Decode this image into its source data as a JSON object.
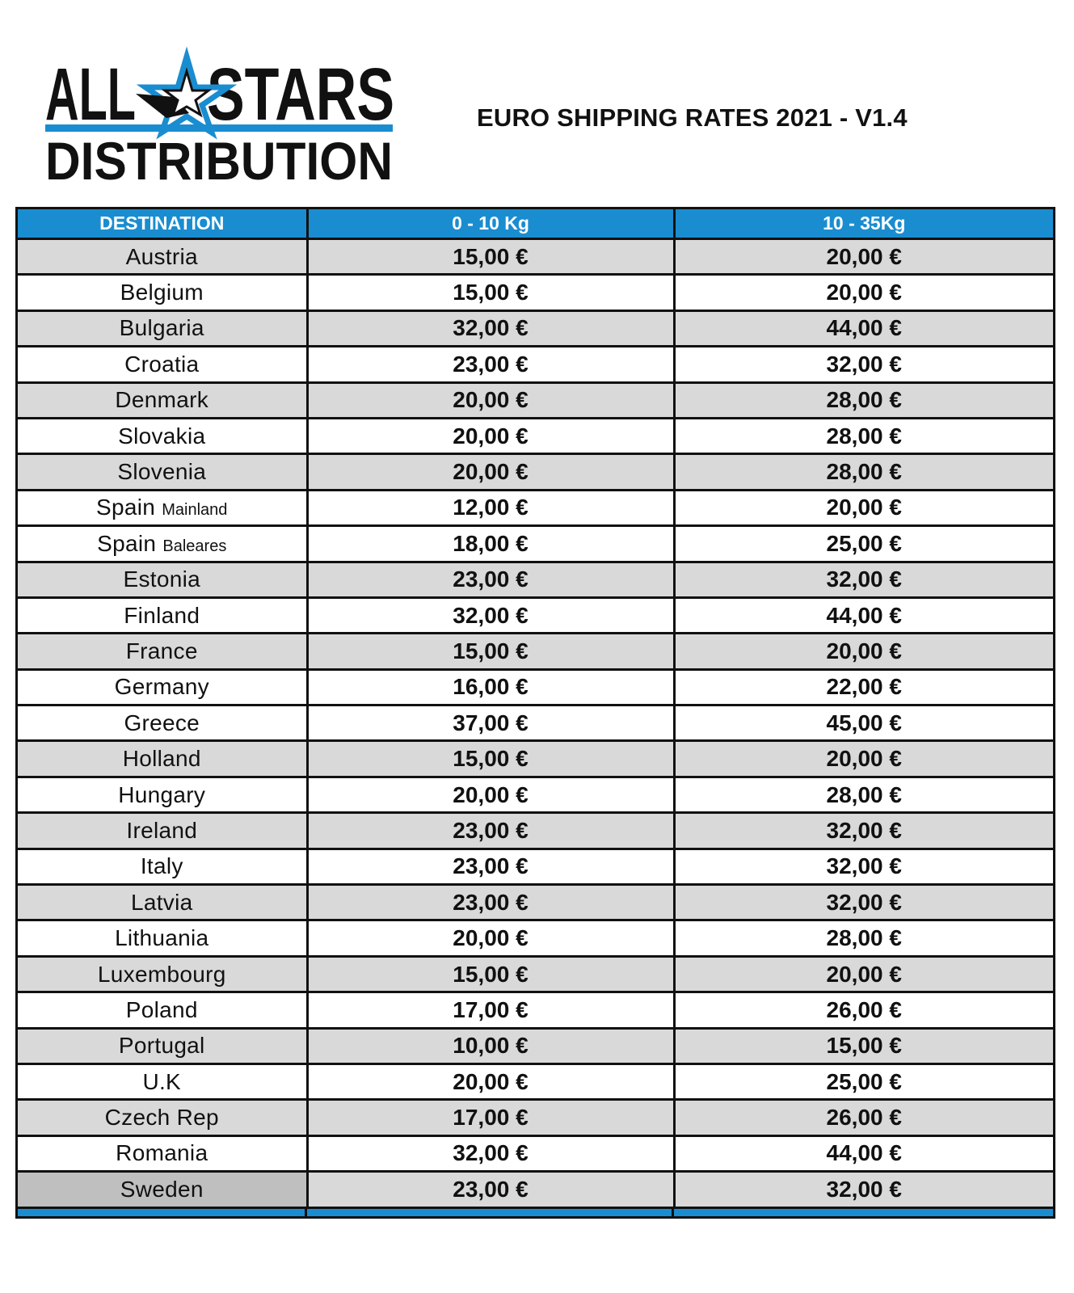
{
  "logo": {
    "line1_left": "ALL",
    "line1_right": "STARS",
    "line2": "DISTRIBUTION",
    "star_icon": "star-icon",
    "accent_color": "#1a8dd0"
  },
  "title": "EURO SHIPPING RATES 2021 - V1.4",
  "table": {
    "header_color": "#1a8dd0",
    "shade_color": "#d9d9d9",
    "headers": [
      "DESTINATION",
      "0 - 10 Kg",
      "10 - 35Kg"
    ],
    "rows": [
      {
        "destination": "Austria",
        "sub": "",
        "rate_0_10": "15,00 €",
        "rate_10_35": "20,00 €"
      },
      {
        "destination": "Belgium",
        "sub": "",
        "rate_0_10": "15,00 €",
        "rate_10_35": "20,00 €"
      },
      {
        "destination": "Bulgaria",
        "sub": "",
        "rate_0_10": "32,00 €",
        "rate_10_35": "44,00 €"
      },
      {
        "destination": "Croatia",
        "sub": "",
        "rate_0_10": "23,00 €",
        "rate_10_35": "32,00 €"
      },
      {
        "destination": "Denmark",
        "sub": "",
        "rate_0_10": "20,00 €",
        "rate_10_35": "28,00 €"
      },
      {
        "destination": "Slovakia",
        "sub": "",
        "rate_0_10": "20,00 €",
        "rate_10_35": "28,00 €"
      },
      {
        "destination": "Slovenia",
        "sub": "",
        "rate_0_10": "20,00 €",
        "rate_10_35": "28,00 €"
      },
      {
        "destination": "Spain",
        "sub": "Mainland",
        "rate_0_10": "12,00 €",
        "rate_10_35": "20,00 €"
      },
      {
        "destination": "Spain",
        "sub": "Baleares",
        "rate_0_10": "18,00 €",
        "rate_10_35": "25,00 €"
      },
      {
        "destination": "Estonia",
        "sub": "",
        "rate_0_10": "23,00 €",
        "rate_10_35": "32,00 €"
      },
      {
        "destination": "Finland",
        "sub": "",
        "rate_0_10": "32,00 €",
        "rate_10_35": "44,00 €"
      },
      {
        "destination": "France",
        "sub": "",
        "rate_0_10": "15,00 €",
        "rate_10_35": "20,00 €"
      },
      {
        "destination": "Germany",
        "sub": "",
        "rate_0_10": "16,00 €",
        "rate_10_35": "22,00 €"
      },
      {
        "destination": "Greece",
        "sub": "",
        "rate_0_10": "37,00 €",
        "rate_10_35": "45,00 €"
      },
      {
        "destination": "Holland",
        "sub": "",
        "rate_0_10": "15,00 €",
        "rate_10_35": "20,00 €"
      },
      {
        "destination": "Hungary",
        "sub": "",
        "rate_0_10": "20,00 €",
        "rate_10_35": "28,00 €"
      },
      {
        "destination": "Ireland",
        "sub": "",
        "rate_0_10": "23,00 €",
        "rate_10_35": "32,00 €"
      },
      {
        "destination": "Italy",
        "sub": "",
        "rate_0_10": "23,00 €",
        "rate_10_35": "32,00 €"
      },
      {
        "destination": "Latvia",
        "sub": "",
        "rate_0_10": "23,00 €",
        "rate_10_35": "32,00 €"
      },
      {
        "destination": "Lithuania",
        "sub": "",
        "rate_0_10": "20,00 €",
        "rate_10_35": "28,00 €"
      },
      {
        "destination": "Luxembourg",
        "sub": "",
        "rate_0_10": "15,00 €",
        "rate_10_35": "20,00 €"
      },
      {
        "destination": "Poland",
        "sub": "",
        "rate_0_10": "17,00 €",
        "rate_10_35": "26,00 €"
      },
      {
        "destination": "Portugal",
        "sub": "",
        "rate_0_10": "10,00 €",
        "rate_10_35": "15,00 €"
      },
      {
        "destination": "U.K",
        "sub": "",
        "rate_0_10": "20,00 €",
        "rate_10_35": "25,00 €"
      },
      {
        "destination": "Czech Rep",
        "sub": "",
        "rate_0_10": "17,00 €",
        "rate_10_35": "26,00 €"
      },
      {
        "destination": "Romania",
        "sub": "",
        "rate_0_10": "32,00 €",
        "rate_10_35": "44,00 €"
      },
      {
        "destination": "Sweden",
        "sub": "",
        "rate_0_10": "23,00 €",
        "rate_10_35": "32,00 €"
      }
    ]
  }
}
